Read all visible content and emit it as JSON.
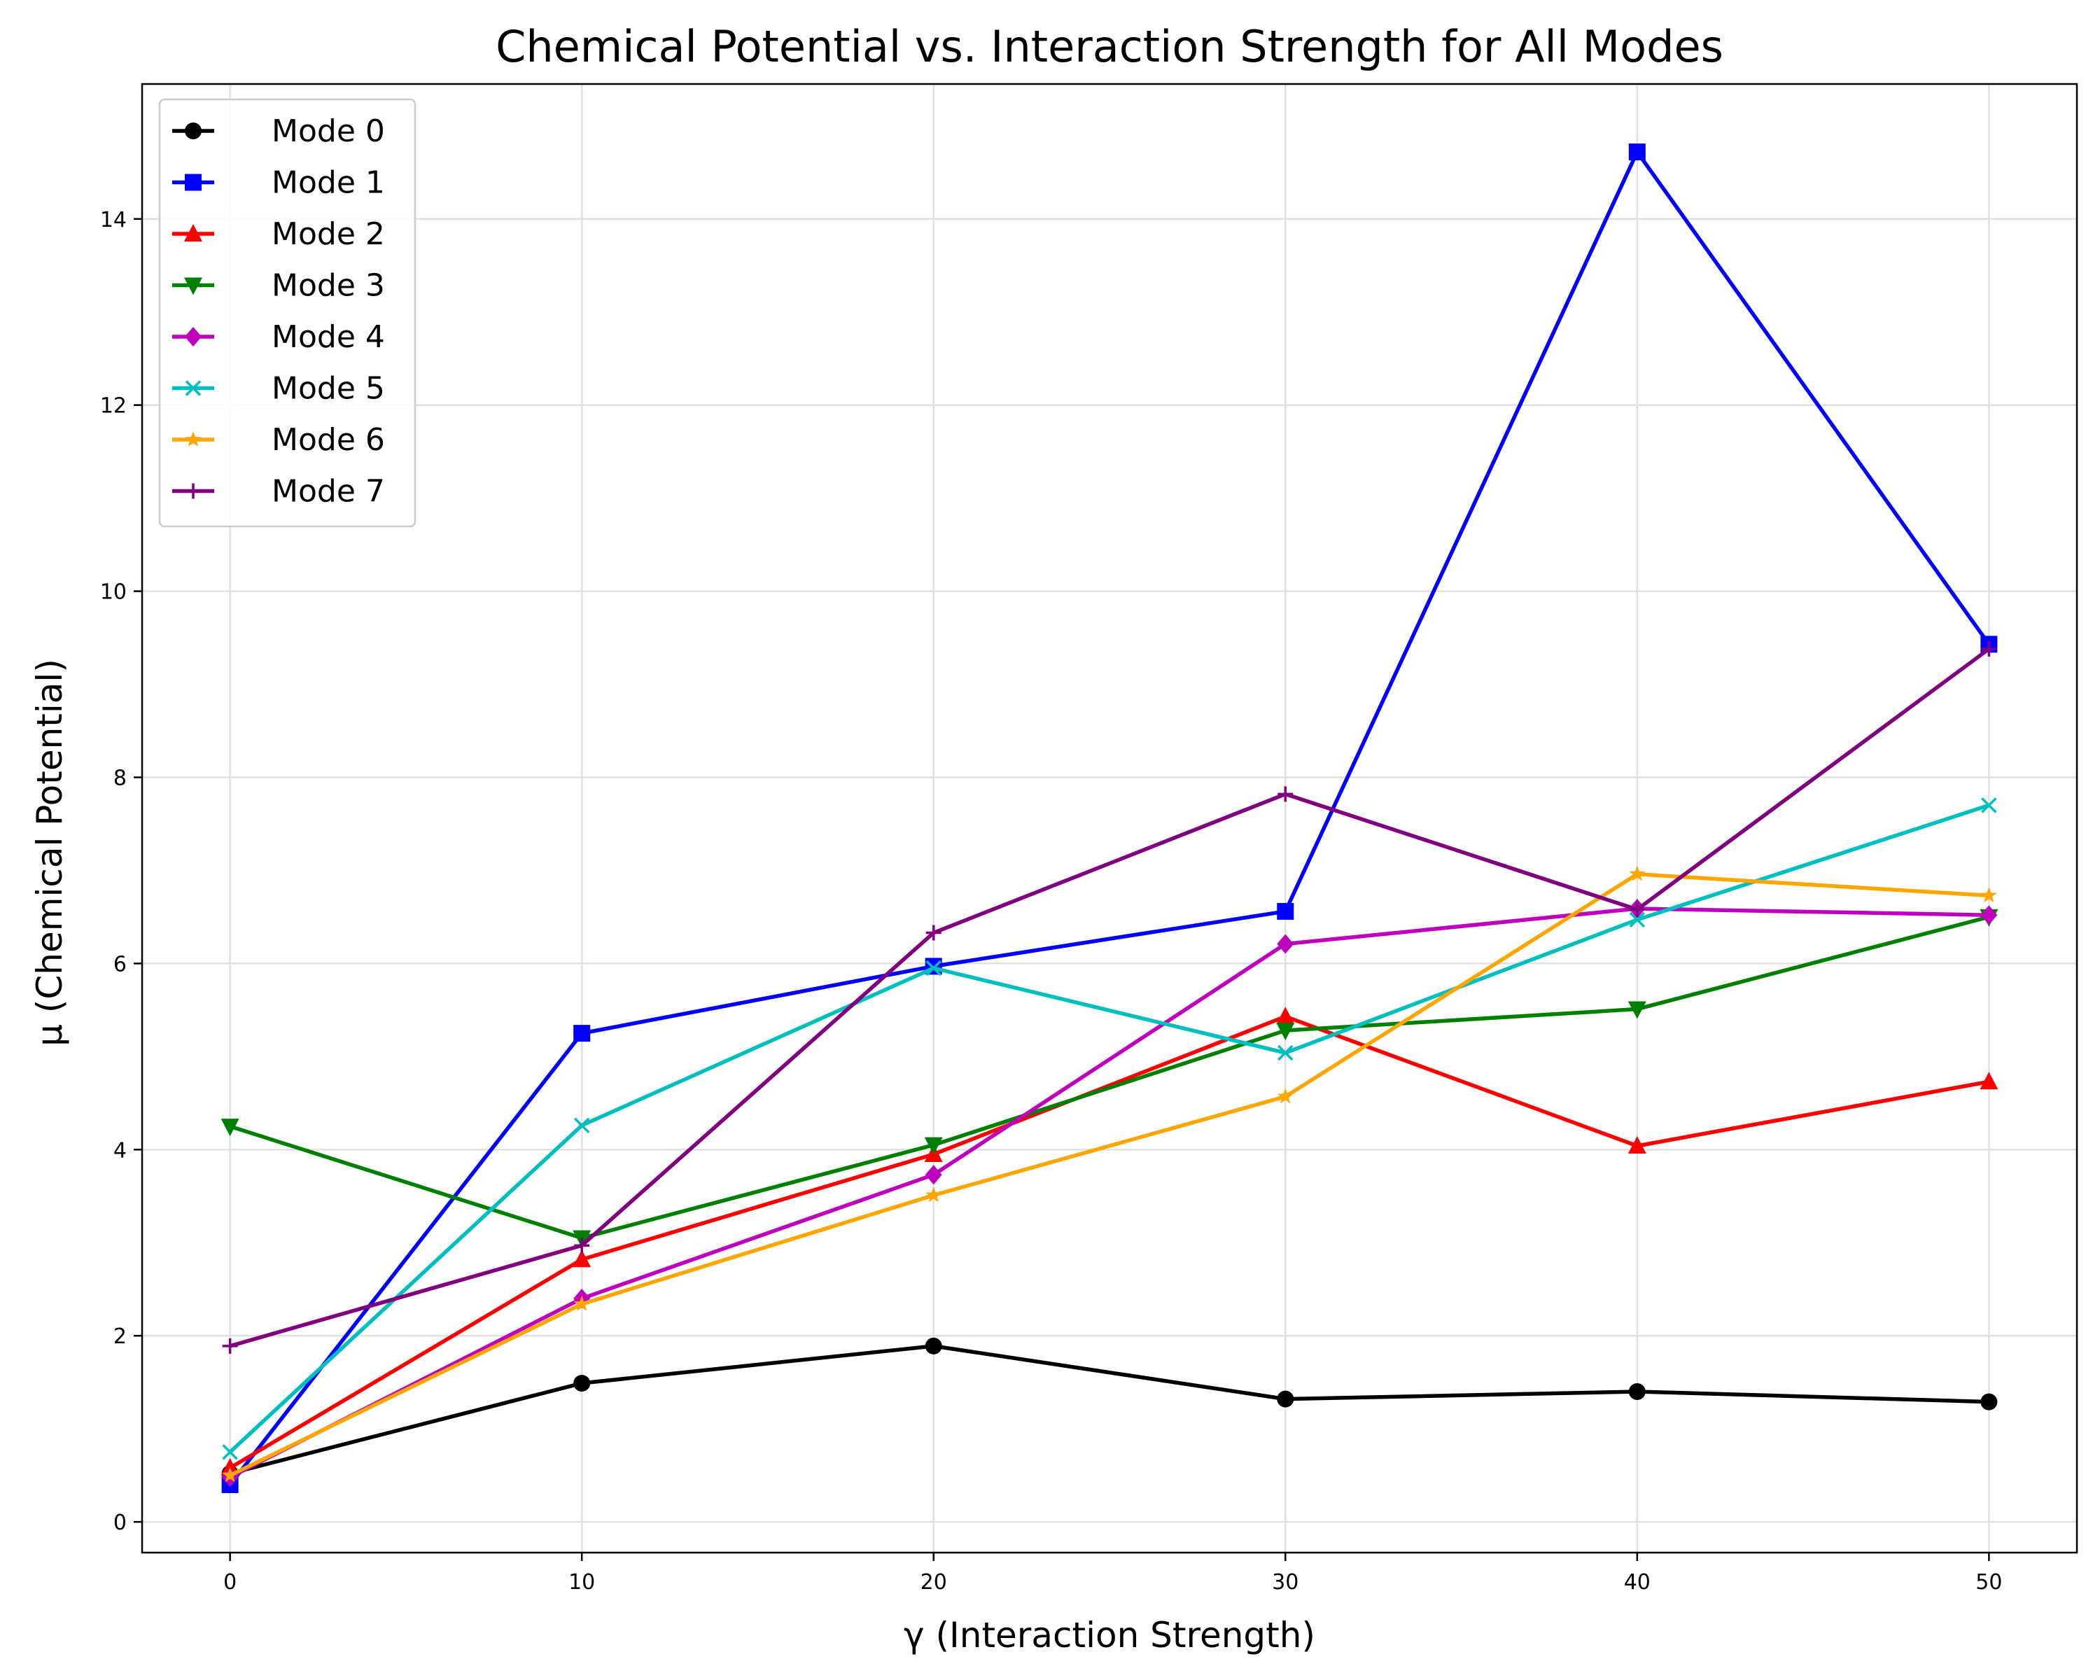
{
  "chart_data": {
    "type": "line",
    "title": "Chemical Potential vs. Interaction Strength for All Modes",
    "xlabel": "γ (Interaction Strength)",
    "ylabel": "μ (Chemical Potential)",
    "x": [
      0,
      10,
      20,
      30,
      40,
      50
    ],
    "xlim": [
      -2.5,
      52.5
    ],
    "ylim": [
      -0.33,
      15.45
    ],
    "xticks": [
      "0",
      "10",
      "20",
      "30",
      "40",
      "50"
    ],
    "yticks": [
      "0",
      "2",
      "4",
      "6",
      "8",
      "10",
      "12",
      "14"
    ],
    "grid": true,
    "legend_position": "upper-left",
    "series": [
      {
        "name": "Mode 0",
        "color": "#000000",
        "marker": "circle",
        "values": [
          0.52,
          1.49,
          1.89,
          1.32,
          1.4,
          1.29
        ]
      },
      {
        "name": "Mode 1",
        "color": "#0000ff",
        "marker": "square",
        "values": [
          0.4,
          5.25,
          5.97,
          6.56,
          14.72,
          9.43
        ]
      },
      {
        "name": "Mode 2",
        "color": "#ff0000",
        "marker": "triangle-up",
        "values": [
          0.58,
          2.82,
          3.95,
          5.43,
          4.04,
          4.73
        ]
      },
      {
        "name": "Mode 3",
        "color": "#008000",
        "marker": "triangle-down",
        "values": [
          4.25,
          3.05,
          4.05,
          5.28,
          5.51,
          6.5
        ]
      },
      {
        "name": "Mode 4",
        "color": "#bf00bf",
        "marker": "diamond",
        "values": [
          0.48,
          2.4,
          3.73,
          6.21,
          6.59,
          6.52
        ]
      },
      {
        "name": "Mode 5",
        "color": "#00bfbf",
        "marker": "x",
        "values": [
          0.75,
          4.26,
          5.95,
          5.04,
          6.47,
          7.7
        ]
      },
      {
        "name": "Mode 6",
        "color": "#ffa500",
        "marker": "star",
        "values": [
          0.5,
          2.34,
          3.51,
          4.57,
          6.96,
          6.73
        ]
      },
      {
        "name": "Mode 7",
        "color": "#800080",
        "marker": "plus",
        "values": [
          1.89,
          2.97,
          6.33,
          7.82,
          6.58,
          9.38
        ]
      }
    ]
  }
}
